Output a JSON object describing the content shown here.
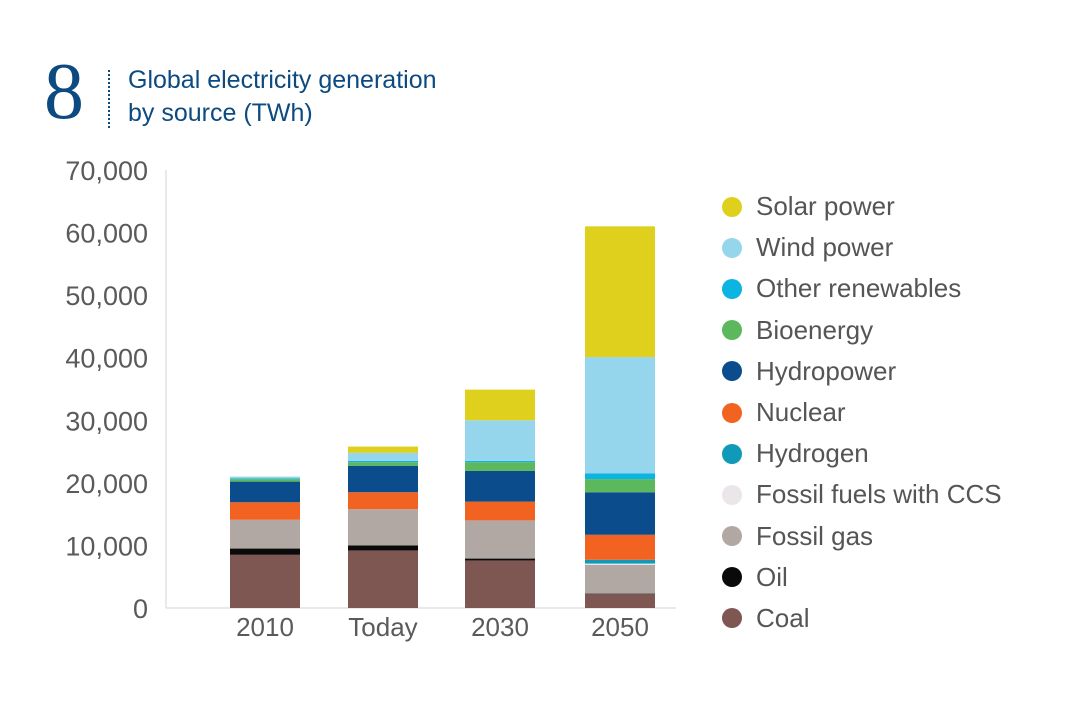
{
  "figure": {
    "number": "8",
    "title_line1": "Global electricity generation",
    "title_line2": "by source (TWh)"
  },
  "chart_data": {
    "type": "bar",
    "stacked": true,
    "title": "Global electricity generation by source (TWh)",
    "xlabel": "",
    "ylabel": "",
    "ylim": [
      0,
      70000
    ],
    "yticks": [
      0,
      10000,
      20000,
      30000,
      40000,
      50000,
      60000,
      70000
    ],
    "ytick_labels": [
      "0",
      "10,000",
      "20,000",
      "30,000",
      "40,000",
      "50,000",
      "60,000",
      "70,000"
    ],
    "categories": [
      "2010",
      "Today",
      "2030",
      "2050"
    ],
    "legend_position": "right",
    "series": [
      {
        "name": "Coal",
        "color": "#7e5652",
        "values": [
          8500,
          9200,
          7600,
          2200
        ]
      },
      {
        "name": "Oil",
        "color": "#0a0a0a",
        "values": [
          1000,
          800,
          300,
          100
        ]
      },
      {
        "name": "Fossil gas",
        "color": "#b2a8a3",
        "values": [
          4600,
          5800,
          6100,
          4600
        ]
      },
      {
        "name": "Fossil fuels with CCS",
        "color": "#ebe6e9",
        "values": [
          0,
          0,
          0,
          200
        ]
      },
      {
        "name": "Hydrogen",
        "color": "#1099b9",
        "values": [
          0,
          0,
          0,
          600
        ]
      },
      {
        "name": "Nuclear",
        "color": "#f26322",
        "values": [
          2800,
          2700,
          3000,
          4000
        ]
      },
      {
        "name": "Hydropower",
        "color": "#0b4d8c",
        "values": [
          3300,
          4200,
          4900,
          6800
        ]
      },
      {
        "name": "Bioenergy",
        "color": "#5cb85c",
        "values": [
          400,
          600,
          1400,
          2100
        ]
      },
      {
        "name": "Other renewables",
        "color": "#0cb4e2",
        "values": [
          100,
          200,
          200,
          900
        ]
      },
      {
        "name": "Wind power",
        "color": "#96d6ec",
        "values": [
          300,
          1300,
          6500,
          18600
        ]
      },
      {
        "name": "Solar power",
        "color": "#dfd01e",
        "values": [
          0,
          1000,
          4900,
          20900
        ]
      }
    ]
  }
}
